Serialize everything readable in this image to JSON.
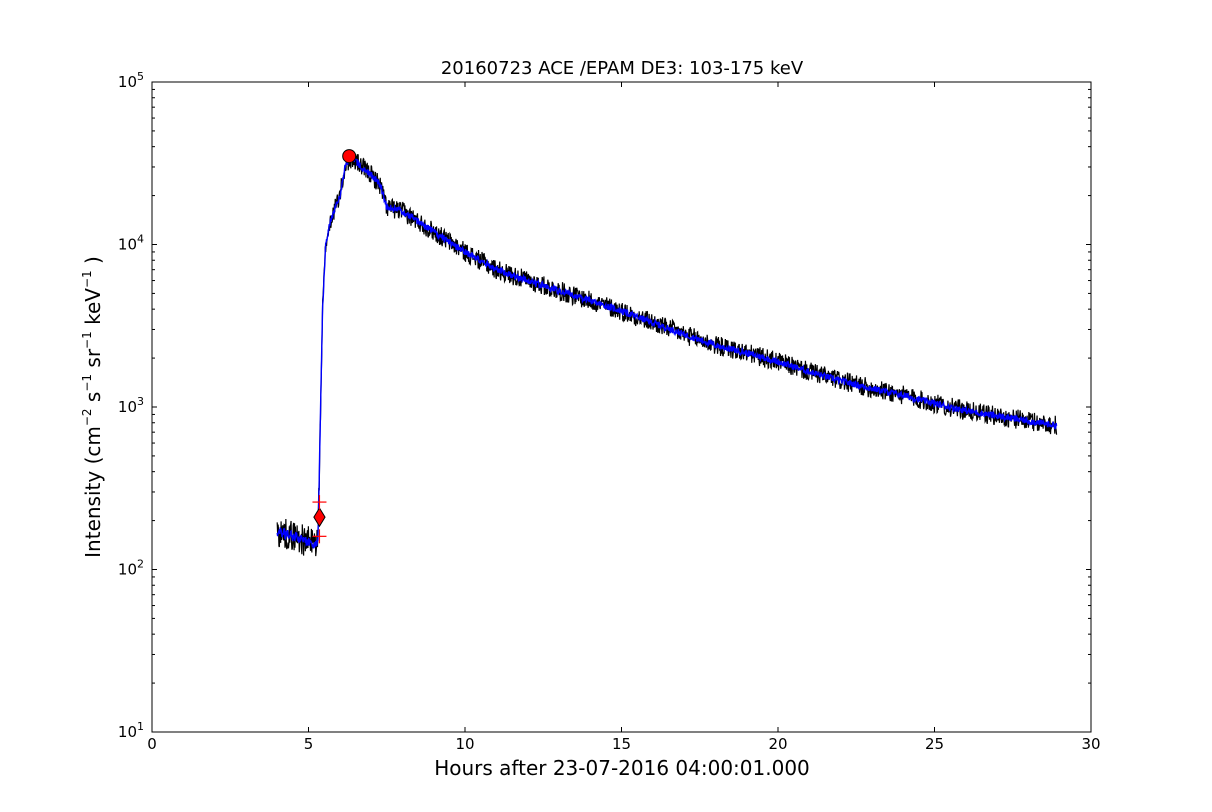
{
  "chart_data": {
    "type": "line",
    "title": "20160723 ACE /EPAM DE3: 103-175 keV",
    "xlabel": "Hours after 23-07-2016 04:00:01.000",
    "ylabel": {
      "main": "Intensity (cm",
      "e1": "−2",
      "s": " s",
      "e2": "−1",
      "sr": " sr",
      "e3": "−1",
      "kev": " keV",
      "e4": "−1",
      "close": " )"
    },
    "xlim": [
      0,
      30
    ],
    "ylim": [
      10,
      100000
    ],
    "yscale": "log",
    "xticks": [
      0,
      5,
      10,
      15,
      20,
      25,
      30
    ],
    "xtick_labels": [
      "0",
      "5",
      "10",
      "15",
      "20",
      "25",
      "30"
    ],
    "yticks": [
      {
        "value": 10,
        "base": "10",
        "exp": "1"
      },
      {
        "value": 100,
        "base": "10",
        "exp": "2"
      },
      {
        "value": 1000,
        "base": "10",
        "exp": "3"
      },
      {
        "value": 10000,
        "base": "10",
        "exp": "4"
      },
      {
        "value": 100000,
        "base": "10",
        "exp": "5"
      }
    ],
    "grid": false,
    "series": [
      {
        "color": "#000000",
        "kind": "raw",
        "x": [
          4.0,
          4.3,
          4.6,
          4.9,
          5.2,
          5.3,
          5.45,
          5.55,
          5.7,
          6.0,
          6.2,
          6.4,
          6.7,
          7.0,
          7.3,
          7.5,
          8.0,
          9.0,
          10.0,
          11.0,
          12.0,
          13.0,
          14.0,
          15.0,
          16.0,
          17.0,
          18.0,
          19.0,
          20.0,
          21.0,
          22.0,
          23.0,
          24.0,
          25.0,
          26.0,
          27.0,
          28.0,
          28.9
        ],
        "values": [
          170,
          165,
          160,
          150,
          145,
          150,
          4000,
          10000,
          14000,
          20000,
          32000,
          34000,
          30000,
          27000,
          23000,
          17000,
          16000,
          12000,
          9000,
          7000,
          6000,
          5200,
          4500,
          3900,
          3300,
          2800,
          2400,
          2150,
          1900,
          1650,
          1450,
          1300,
          1180,
          1050,
          950,
          880,
          820,
          770
        ],
        "noise": 0.12
      },
      {
        "color": "#0000ff",
        "kind": "smoothed",
        "x": [
          4.0,
          4.3,
          4.6,
          4.9,
          5.2,
          5.3,
          5.45,
          5.55,
          5.7,
          6.0,
          6.2,
          6.4,
          6.7,
          7.0,
          7.3,
          7.5,
          8.0,
          9.0,
          10.0,
          11.0,
          12.0,
          13.0,
          14.0,
          15.0,
          16.0,
          17.0,
          18.0,
          19.0,
          20.0,
          21.0,
          22.0,
          23.0,
          24.0,
          25.0,
          26.0,
          27.0,
          28.0,
          28.9
        ],
        "values": [
          170,
          165,
          160,
          150,
          145,
          150,
          4000,
          10000,
          14000,
          20000,
          32000,
          34000,
          30000,
          27000,
          23000,
          17000,
          16000,
          12000,
          9000,
          7000,
          6000,
          5200,
          4500,
          3900,
          3300,
          2800,
          2400,
          2150,
          1900,
          1650,
          1450,
          1300,
          1180,
          1050,
          950,
          880,
          820,
          770
        ],
        "noise": 0.04
      }
    ],
    "markers": [
      {
        "type": "circle",
        "x": 6.3,
        "y": 35000,
        "color": "#ff0000"
      },
      {
        "type": "diamond",
        "x": 5.35,
        "y": 210,
        "color": "#ff0000"
      },
      {
        "type": "plus",
        "x": 5.35,
        "y": 260,
        "color": "#ff0000"
      },
      {
        "type": "plus",
        "x": 5.35,
        "y": 160,
        "color": "#ff0000"
      }
    ]
  }
}
